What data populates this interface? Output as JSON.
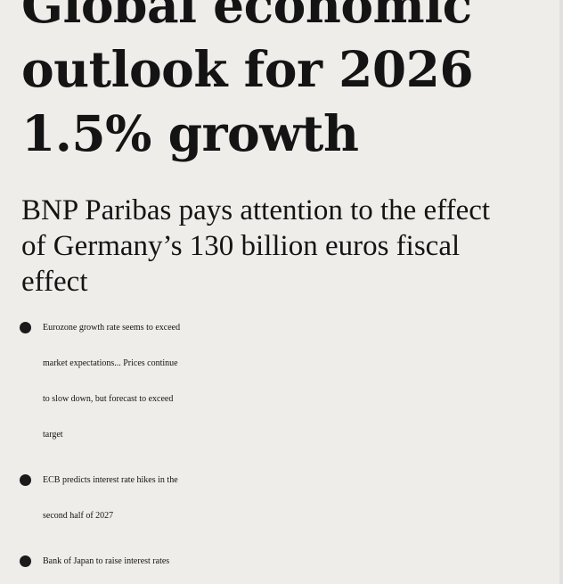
{
  "headline": {
    "line1": "Global economic",
    "line2": "outlook for 2026",
    "line3": "1.5% growth"
  },
  "subhead": {
    "line1": "BNP Paribas pays attention to the effect",
    "line2": "of Germany’s 130 billion euros fiscal",
    "line3": "effect"
  },
  "bullets": [
    {
      "line1": "Eurozone growth rate seems to exceed",
      "line2": "market expectations... Prices continue",
      "line3": "to slow down, but forecast to exceed",
      "line4": "target"
    },
    {
      "line1": "ECB predicts interest rate hikes in the",
      "line2": "second half of 2027"
    },
    {
      "line1": "Bank of Japan to raise interest rates"
    }
  ]
}
